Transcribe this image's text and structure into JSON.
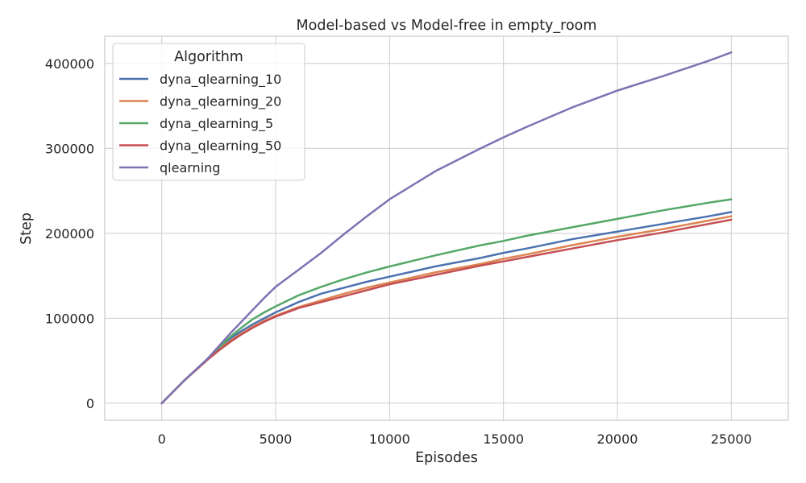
{
  "chart_data": {
    "type": "line",
    "title": "Model-based vs Model-free in empty_room",
    "xlabel": "Episodes",
    "ylabel": "Step",
    "xlim": [
      -2500,
      27500
    ],
    "ylim": [
      -20000,
      432000
    ],
    "xticks": [
      0,
      5000,
      10000,
      15000,
      20000,
      25000
    ],
    "yticks": [
      0,
      100000,
      200000,
      300000,
      400000
    ],
    "grid": true,
    "legend": {
      "title": "Algorithm",
      "placement": "top-left"
    },
    "x": [
      0,
      1000,
      2000,
      2500,
      3000,
      3500,
      4000,
      4500,
      5000,
      6000,
      7000,
      8000,
      9000,
      10000,
      12000,
      14000,
      15000,
      16000,
      18000,
      20000,
      22000,
      24000,
      25000
    ],
    "series": [
      {
        "name": "dyna_qlearning_10",
        "color": "#4c72b0",
        "values": [
          0,
          27000,
          52000,
          64000,
          76000,
          85000,
          93000,
          100000,
          107000,
          119000,
          129000,
          136000,
          143000,
          149000,
          161000,
          171000,
          177000,
          182000,
          193000,
          202000,
          211000,
          220000,
          225000
        ]
      },
      {
        "name": "dyna_qlearning_20",
        "color": "#dd8452",
        "values": [
          0,
          27000,
          51000,
          63000,
          73000,
          82000,
          90000,
          97000,
          103000,
          113000,
          121000,
          129000,
          136000,
          142000,
          154000,
          164000,
          170000,
          175000,
          186000,
          196000,
          205000,
          215000,
          220000
        ]
      },
      {
        "name": "dyna_qlearning_5",
        "color": "#55a868",
        "values": [
          0,
          27000,
          52000,
          65000,
          78000,
          89000,
          99000,
          107000,
          114000,
          127000,
          137000,
          146000,
          154000,
          161000,
          174000,
          186000,
          191000,
          197000,
          207000,
          217000,
          227000,
          236000,
          240000
        ]
      },
      {
        "name": "dyna_qlearning_50",
        "color": "#c44e52",
        "values": [
          0,
          27000,
          51000,
          62000,
          72000,
          81000,
          89000,
          96000,
          102000,
          112000,
          119000,
          126000,
          133000,
          140000,
          151000,
          162000,
          167000,
          172000,
          182000,
          192000,
          201000,
          211000,
          216000
        ]
      },
      {
        "name": "qlearning",
        "color": "#8172b3",
        "values": [
          0,
          27000,
          52000,
          67000,
          82000,
          96000,
          110000,
          124000,
          137000,
          157000,
          177000,
          199000,
          220000,
          240000,
          273000,
          300000,
          313000,
          325000,
          348000,
          368000,
          385000,
          403000,
          413000
        ]
      }
    ]
  }
}
